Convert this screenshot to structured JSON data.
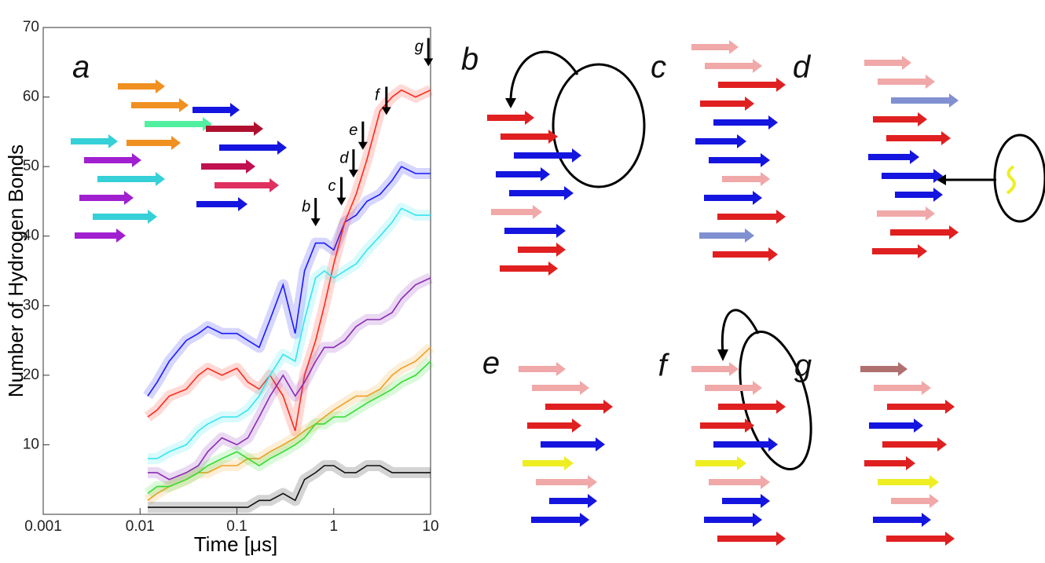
{
  "chart_data": {
    "type": "line",
    "panel_label": "a",
    "x_label": "Time [μs]",
    "y_label": "Number of Hydrogen Bonds",
    "log_x": true,
    "xlim": [
      0.001,
      10
    ],
    "xticks": [
      0.001,
      0.01,
      0.1,
      1,
      10
    ],
    "ylim": [
      0,
      70
    ],
    "yticks": [
      10,
      20,
      30,
      40,
      50,
      60,
      70
    ],
    "x": [
      0.012,
      0.015,
      0.02,
      0.03,
      0.04,
      0.05,
      0.07,
      0.1,
      0.13,
      0.17,
      0.22,
      0.3,
      0.4,
      0.5,
      0.65,
      0.8,
      1,
      1.3,
      1.7,
      2.2,
      3,
      4,
      5,
      7,
      10
    ],
    "series": [
      {
        "color": "#1a1aff",
        "values": [
          17,
          19,
          22,
          25,
          26,
          27,
          26,
          26,
          25,
          24,
          28,
          33,
          26,
          35,
          39,
          39,
          38,
          42,
          43,
          45,
          46,
          48,
          50,
          49,
          49
        ]
      },
      {
        "color": "#ff2a1a",
        "values": [
          14,
          15,
          17,
          18,
          20,
          21,
          20,
          21,
          19,
          18,
          20,
          17,
          12,
          20,
          25,
          30,
          36,
          42,
          46,
          51,
          58,
          60,
          61,
          60,
          61
        ]
      },
      {
        "color": "#33e6f0",
        "values": [
          8,
          8,
          9,
          10,
          12,
          13,
          14,
          14,
          15,
          17,
          20,
          23,
          22,
          28,
          34,
          35,
          34,
          35,
          36,
          38,
          40,
          42,
          44,
          43,
          43
        ]
      },
      {
        "color": "#8a2bb5",
        "values": [
          6,
          6,
          5,
          6,
          7,
          9,
          11,
          10,
          11,
          14,
          17,
          20,
          17,
          19,
          22,
          24,
          24,
          25,
          27,
          28,
          28,
          29,
          31,
          33,
          34
        ]
      },
      {
        "color": "#f0a020",
        "values": [
          2,
          3,
          4,
          5,
          6,
          6,
          7,
          7,
          8,
          8,
          9,
          10,
          11,
          12,
          13,
          14,
          15,
          16,
          17,
          17,
          18,
          20,
          21,
          22,
          24
        ]
      },
      {
        "color": "#33dd33",
        "values": [
          3,
          4,
          4,
          5,
          6,
          7,
          8,
          9,
          8,
          7,
          8,
          9,
          10,
          11,
          13,
          13,
          14,
          14,
          15,
          16,
          17,
          18,
          19,
          20,
          22
        ]
      },
      {
        "color": "#111111",
        "values": [
          1,
          1,
          1,
          1,
          1,
          1,
          1,
          1,
          1,
          2,
          2,
          3,
          2,
          5,
          6,
          7,
          7,
          6,
          6,
          7,
          7,
          6,
          6,
          6,
          6
        ]
      }
    ],
    "annotations": [
      {
        "text": "b",
        "x": 0.65,
        "y": 43
      },
      {
        "text": "c",
        "x": 1.2,
        "y": 46
      },
      {
        "text": "d",
        "x": 1.6,
        "y": 50
      },
      {
        "text": "e",
        "x": 2.0,
        "y": 54
      },
      {
        "text": "f",
        "x": 3.5,
        "y": 59
      },
      {
        "text": "g",
        "x": 9.5,
        "y": 66
      }
    ]
  },
  "panel_labels": [
    "b",
    "c",
    "d",
    "e",
    "f",
    "g"
  ]
}
